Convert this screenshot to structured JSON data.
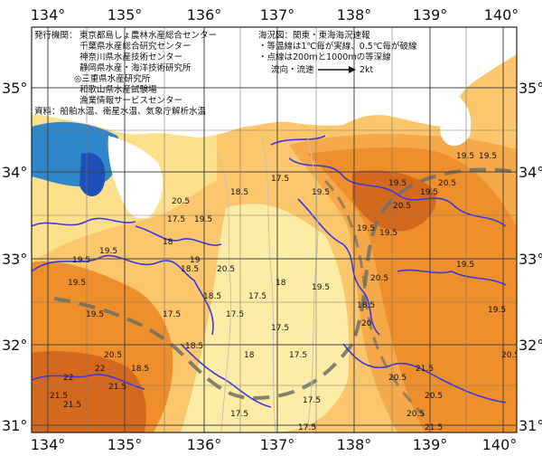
{
  "map": {
    "longitude_ticks": [
      "134°",
      "135°",
      "136°",
      "137°",
      "138°",
      "139°",
      "140°"
    ],
    "latitude_ticks": [
      "35°",
      "34°",
      "33°",
      "32°",
      "31°"
    ],
    "publisher": {
      "heading": "発行機関：",
      "lines": [
        "東京都島しょ農林水産総合センター",
        "千葉県水産総合研究センター",
        "神奈川県水産技術センター",
        "静岡県水産・海洋技術研究所",
        "◎三重県水産研究所",
        "和歌山県水産試験場",
        "漁業情報サービスセンター"
      ]
    },
    "sources": "資料：船舶水温、衛星水温、気象庁解析水温",
    "scope": "海況図：関東・東海海況速報",
    "legend_notes": [
      "・等温線は1℃毎が実線、0.5℃毎が破線",
      "・点線は200ｍと1000ｍの等深線"
    ],
    "current_label": "流向・流速",
    "current_speed": "2kt",
    "isotherm_labels": [
      "19.5",
      "20.5",
      "19.5",
      "18.5",
      "17.5",
      "19.5",
      "20.5",
      "19",
      "18.5",
      "18",
      "17.5",
      "19.5",
      "20.5",
      "19.5",
      "18.5",
      "17.5",
      "18.5",
      "19.5",
      "19.5",
      "19.5",
      "19.5",
      "17.5",
      "17.5",
      "17.5",
      "17.5",
      "18",
      "18.5",
      "19.5",
      "20.5",
      "20.5",
      "21.5",
      "20.5",
      "21.5",
      "22",
      "21.5",
      "22",
      "19.5",
      "19.5",
      "20.5",
      "19.5",
      "20.5",
      "19.5",
      "18.5",
      "18",
      "17.5",
      "17.5",
      "17.5",
      "19.5",
      "20.5",
      "20.5",
      "20",
      "21.5",
      "21.5"
    ],
    "colors": {
      "warm_core": "#d4691e",
      "warm": "#ee8f2c",
      "mid_warm": "#f6a948",
      "mid": "#fbc66c",
      "cool": "#fde08c",
      "cooler": "#fdeca6",
      "coast_blue": "#2f86c9",
      "deep_blue": "#1e4fb8",
      "land": "#ffffff",
      "isotherm": "#3b39e0",
      "kuroshio": "#6f6f64"
    }
  }
}
